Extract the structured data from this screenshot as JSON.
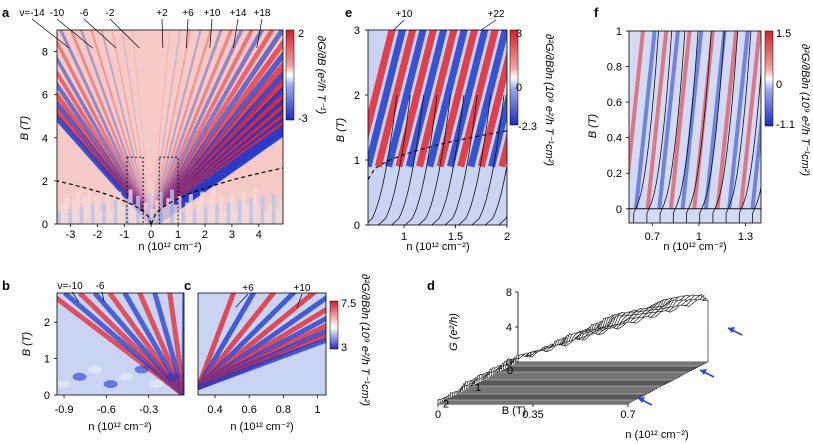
{
  "panels": {
    "a": {
      "letter": "a",
      "nu_labels": [
        "ν=-14",
        "-10",
        "-6",
        "-2",
        "+2",
        "+6",
        "+10",
        "+14",
        "+18"
      ],
      "xlabel": "n (10¹² cm⁻²)",
      "ylabel": "B (T)",
      "cbar_label": "∂G/∂B (e²/h T⁻¹)",
      "cbar_ticks": [
        "2",
        "-3"
      ],
      "x_ticks": [
        "-3",
        "-2",
        "-1",
        "0",
        "1",
        "2",
        "3",
        "4"
      ],
      "y_ticks": [
        "0",
        "2",
        "4",
        "6",
        "8"
      ]
    },
    "b": {
      "letter": "b",
      "nu_labels": [
        "ν=-10",
        "-6"
      ],
      "xlabel": "n (10¹² cm⁻²)",
      "ylabel": "B (T)",
      "x_ticks": [
        "-0.9",
        "-0.6",
        "-0.3"
      ],
      "y_ticks": [
        "0",
        "1",
        "2"
      ]
    },
    "c": {
      "letter": "c",
      "nu_labels": [
        "+6",
        "+10"
      ],
      "xlabel": "n (10¹² cm⁻²)",
      "x_ticks": [
        "0.4",
        "0.6",
        "0.8",
        "1"
      ],
      "cbar_label": "∂²G/∂B∂n (10⁹ e²/h T⁻¹cm²)",
      "cbar_ticks": [
        "7.5",
        "3"
      ]
    },
    "d": {
      "letter": "d",
      "zlabel": "G (e²/h)",
      "z_ticks": [
        "0",
        "4",
        "8"
      ],
      "blabel": "B (T)",
      "b_ticks": [
        "0",
        "1",
        "2"
      ],
      "xlabel": "n (10¹² cm⁻²)",
      "x_ticks": [
        "0",
        "0.35",
        "0.7"
      ]
    },
    "e": {
      "letter": "e",
      "nu_labels": [
        "+10",
        "+22"
      ],
      "xlabel": "n (10¹² cm⁻²)",
      "ylabel": "B (T)",
      "x_ticks": [
        "1",
        "1.5",
        "2"
      ],
      "y_ticks": [
        "0",
        "1",
        "2",
        "3"
      ],
      "cbar_label": "∂²G/∂B∂n (10⁹ e²/h T⁻¹cm²)",
      "cbar_ticks": [
        "3",
        "0",
        "-2.3"
      ]
    },
    "f": {
      "letter": "f",
      "xlabel": "n (10¹² cm⁻²)",
      "ylabel": "B (T)",
      "x_ticks": [
        "0.7",
        "1",
        "1.3"
      ],
      "y_ticks": [
        "0",
        "0.2",
        "0.4",
        "0.6",
        "0.8",
        "1"
      ],
      "cbar_label": "∂²G/∂B∂n (10⁹ e²/h T⁻¹cm²)",
      "cbar_ticks": [
        "1.5",
        "0",
        "-1.1"
      ]
    }
  },
  "chart_data": [
    {
      "panel": "a",
      "type": "heatmap",
      "xlabel": "n (10¹² cm⁻²)",
      "ylabel": "B (T)",
      "xlim": [
        -3.5,
        4.9
      ],
      "ylim": [
        0,
        9
      ],
      "colorbar": {
        "label": "∂G/∂B (e²/h T⁻¹)",
        "range": [
          -3,
          2
        ]
      },
      "fan_filling_factors": [
        -14,
        -10,
        -6,
        -2,
        2,
        6,
        10,
        14,
        18
      ],
      "boxes_n": [
        [
          -0.9,
          -0.3
        ],
        [
          0.3,
          1.0
        ]
      ],
      "boxes_B": [
        0,
        3.1
      ]
    },
    {
      "panel": "b",
      "type": "heatmap",
      "xlabel": "n (10¹² cm⁻²)",
      "ylabel": "B (T)",
      "xlim": [
        -0.95,
        -0.05
      ],
      "ylim": [
        0,
        2.8
      ],
      "fan_filling_factors": [
        -10,
        -6
      ]
    },
    {
      "panel": "c",
      "type": "heatmap",
      "xlabel": "n (10¹² cm⁻²)",
      "xlim": [
        0.3,
        1.05
      ],
      "ylim": [
        0,
        2.8
      ],
      "colorbar": {
        "label": "∂²G/∂B∂n (10⁹ e²/h T⁻¹cm²)",
        "range": [
          3,
          7.5
        ]
      },
      "fan_filling_factors": [
        6,
        10
      ]
    },
    {
      "panel": "d",
      "type": "line",
      "zlabel": "G (e²/h)",
      "blabel": "B (T)",
      "xlabel": "n (10¹² cm⁻²)",
      "zlim": [
        0,
        8
      ],
      "blim": [
        0,
        2.5
      ],
      "xlim": [
        0,
        0.7
      ],
      "curve_count": 40,
      "arrow_count": 3
    },
    {
      "panel": "e",
      "type": "heatmap",
      "xlabel": "n (10¹² cm⁻²)",
      "ylabel": "B (T)",
      "xlim": [
        0.65,
        2.0
      ],
      "ylim": [
        0,
        3
      ],
      "colorbar": {
        "label": "∂²G/∂B∂n (10⁹ e²/h T⁻¹cm²)",
        "range": [
          -2.3,
          3
        ]
      },
      "fan_filling_factors": [
        10,
        22
      ]
    },
    {
      "panel": "f",
      "type": "heatmap",
      "xlabel": "n (10¹² cm⁻²)",
      "ylabel": "B (T)",
      "xlim": [
        0.55,
        1.4
      ],
      "ylim": [
        -0.08,
        1.0
      ],
      "colorbar": {
        "label": "∂²G/∂B∂n (10⁹ e²/h T⁻¹cm²)",
        "range": [
          -1.1,
          1.5
        ]
      }
    }
  ],
  "colors": {
    "red": "#e8242a",
    "blue": "#1f3bcf",
    "pink": "#f7c4c0",
    "light": "#f4f2f6"
  }
}
